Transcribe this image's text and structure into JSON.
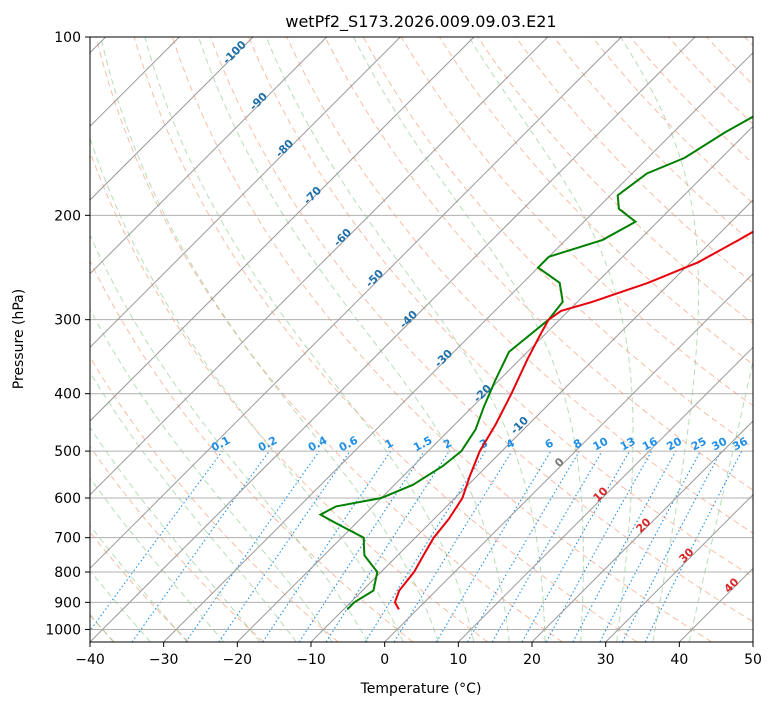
{
  "chart_data": {
    "type": "skew-t log-p",
    "title": "wetPf2_S173.2026.009.09.03.E21",
    "xlabel": "Temperature (°C)",
    "ylabel": "Pressure (hPa)",
    "xlim": [
      -40,
      50
    ],
    "ylim": [
      1050,
      100
    ],
    "x_ticks": [
      "−40",
      "−30",
      "−20",
      "−10",
      "0",
      "10",
      "20",
      "30",
      "40",
      "50"
    ],
    "y_ticks": [
      {
        "p": 100,
        "label": "100"
      },
      {
        "p": 200,
        "label": "200"
      },
      {
        "p": 300,
        "label": "300"
      },
      {
        "p": 400,
        "label": "400"
      },
      {
        "p": 500,
        "label": "500"
      },
      {
        "p": 600,
        "label": "600"
      },
      {
        "p": 700,
        "label": "700"
      },
      {
        "p": 800,
        "label": "800"
      },
      {
        "p": 900,
        "label": "900"
      },
      {
        "p": 1000,
        "label": "1000"
      }
    ],
    "grid": true,
    "colors": {
      "temperature": "#e8000b",
      "dewpoint": "#008000",
      "isotherm": "#999999",
      "dry_adiabat": "#f7a07f",
      "moist_adiabat": "#88c488",
      "mixing_ratio": "#1f8fe6",
      "theta_e_label": "#1f6fa8",
      "theta_label": "#d62728"
    },
    "temperature": [
      {
        "p": 925,
        "t": -2.5
      },
      {
        "p": 900,
        "t": -4
      },
      {
        "p": 860,
        "t": -5
      },
      {
        "p": 800,
        "t": -5.5
      },
      {
        "p": 750,
        "t": -6.5
      },
      {
        "p": 700,
        "t": -7.5
      },
      {
        "p": 650,
        "t": -8
      },
      {
        "p": 600,
        "t": -9
      },
      {
        "p": 550,
        "t": -11
      },
      {
        "p": 500,
        "t": -13
      },
      {
        "p": 450,
        "t": -14.5
      },
      {
        "p": 400,
        "t": -16.5
      },
      {
        "p": 350,
        "t": -19
      },
      {
        "p": 320,
        "t": -20.5
      },
      {
        "p": 300,
        "t": -21.5
      },
      {
        "p": 290,
        "t": -21
      },
      {
        "p": 280,
        "t": -18
      },
      {
        "p": 260,
        "t": -13
      },
      {
        "p": 240,
        "t": -9
      },
      {
        "p": 220,
        "t": -6.5
      },
      {
        "p": 200,
        "t": -4
      },
      {
        "p": 180,
        "t": -3
      },
      {
        "p": 165,
        "t": -3
      },
      {
        "p": 150,
        "t": -3
      },
      {
        "p": 135,
        "t": -4
      },
      {
        "p": 120,
        "t": -5.5
      },
      {
        "p": 110,
        "t": -6.5
      },
      {
        "p": 100,
        "t": -7.5
      }
    ],
    "dewpoint": [
      {
        "p": 925,
        "t": -9.5
      },
      {
        "p": 900,
        "t": -9.5
      },
      {
        "p": 860,
        "t": -8.5
      },
      {
        "p": 800,
        "t": -10.5
      },
      {
        "p": 750,
        "t": -14.5
      },
      {
        "p": 720,
        "t": -16
      },
      {
        "p": 700,
        "t": -17
      },
      {
        "p": 660,
        "t": -23
      },
      {
        "p": 640,
        "t": -26
      },
      {
        "p": 620,
        "t": -25
      },
      {
        "p": 600,
        "t": -20
      },
      {
        "p": 570,
        "t": -17.5
      },
      {
        "p": 530,
        "t": -16
      },
      {
        "p": 500,
        "t": -15.5
      },
      {
        "p": 460,
        "t": -16.5
      },
      {
        "p": 420,
        "t": -18.5
      },
      {
        "p": 380,
        "t": -20.5
      },
      {
        "p": 340,
        "t": -22.5
      },
      {
        "p": 300,
        "t": -21.5
      },
      {
        "p": 280,
        "t": -22
      },
      {
        "p": 260,
        "t": -25
      },
      {
        "p": 245,
        "t": -30
      },
      {
        "p": 235,
        "t": -30
      },
      {
        "p": 220,
        "t": -25
      },
      {
        "p": 205,
        "t": -23
      },
      {
        "p": 195,
        "t": -27
      },
      {
        "p": 185,
        "t": -29
      },
      {
        "p": 170,
        "t": -28
      },
      {
        "p": 160,
        "t": -25
      },
      {
        "p": 145,
        "t": -23
      },
      {
        "p": 130,
        "t": -20
      },
      {
        "p": 120,
        "t": -16
      },
      {
        "p": 110,
        "t": -12
      },
      {
        "p": 100,
        "t": -8.5
      }
    ],
    "isotherm_labels": [
      "-100",
      "-90",
      "-80",
      "-70",
      "-60",
      "-50",
      "-40",
      "-30",
      "-20",
      "-10",
      "0"
    ],
    "theta_labels": [
      "10",
      "20",
      "30",
      "40"
    ],
    "mixing_ratio_labels": [
      "0.1",
      "0.2",
      "0.4",
      "0.6",
      "1",
      "1.5",
      "2",
      "3",
      "4",
      "6",
      "8",
      "10",
      "13",
      "16",
      "20",
      "25",
      "30",
      "36"
    ]
  }
}
